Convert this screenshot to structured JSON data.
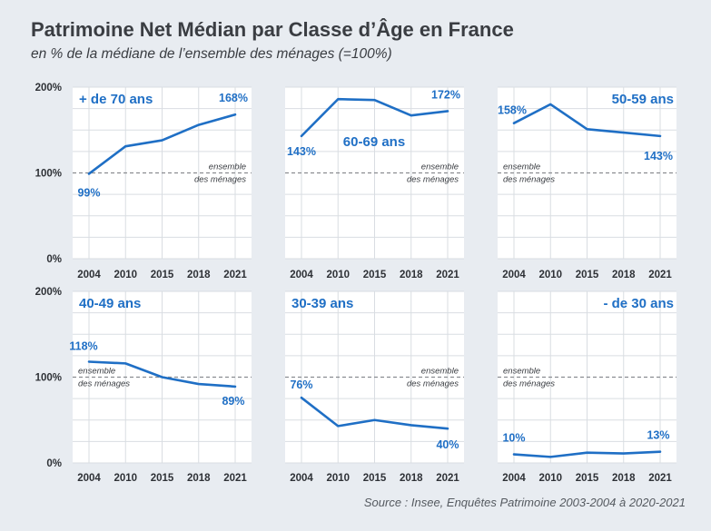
{
  "header": {
    "title": "Patrimoine Net Médian par Classe d’Âge en France",
    "subtitle": "en % de la médiane de l’ensemble des ménages (=100%)"
  },
  "footer": {
    "source": "Source : Insee, Enquêtes Patrimoine 2003-2004 à 2020-2021"
  },
  "reference": {
    "label_line1": "ensemble",
    "label_line2": "des ménages",
    "value": 100
  },
  "y_ticks": [
    "0%",
    "100%",
    "200%"
  ],
  "colors": {
    "line": "#1f6fc5",
    "label": "#1f6fc5",
    "background": "#e8ecf1",
    "grid": "#d9dde2",
    "reference": "#8a8d91"
  },
  "chart_data": [
    {
      "type": "line",
      "title": "+ de 70 ans",
      "categories": [
        "2004",
        "2010",
        "2015",
        "2018",
        "2021"
      ],
      "values": [
        99,
        131,
        138,
        156,
        168
      ],
      "labels": {
        "start": "99%",
        "end": "168%"
      },
      "ylim": [
        0,
        200
      ]
    },
    {
      "type": "line",
      "title": "60-69 ans",
      "categories": [
        "2004",
        "2010",
        "2015",
        "2018",
        "2021"
      ],
      "values": [
        143,
        186,
        185,
        167,
        172
      ],
      "labels": {
        "start": "143%",
        "end": "172%"
      },
      "ylim": [
        0,
        200
      ]
    },
    {
      "type": "line",
      "title": "50-59 ans",
      "categories": [
        "2004",
        "2010",
        "2015",
        "2018",
        "2021"
      ],
      "values": [
        158,
        180,
        151,
        147,
        143
      ],
      "labels": {
        "start": "158%",
        "end": "143%"
      },
      "ylim": [
        0,
        200
      ]
    },
    {
      "type": "line",
      "title": "40-49 ans",
      "categories": [
        "2004",
        "2010",
        "2015",
        "2018",
        "2021"
      ],
      "values": [
        118,
        116,
        100,
        92,
        89
      ],
      "labels": {
        "start": "118%",
        "end": "89%"
      },
      "ylim": [
        0,
        200
      ]
    },
    {
      "type": "line",
      "title": "30-39 ans",
      "categories": [
        "2004",
        "2010",
        "2015",
        "2018",
        "2021"
      ],
      "values": [
        76,
        43,
        50,
        44,
        40
      ],
      "labels": {
        "start": "76%",
        "end": "40%"
      },
      "ylim": [
        0,
        200
      ]
    },
    {
      "type": "line",
      "title": "- de 30 ans",
      "categories": [
        "2004",
        "2010",
        "2015",
        "2018",
        "2021"
      ],
      "values": [
        10,
        7,
        12,
        11,
        13
      ],
      "labels": {
        "start": "10%",
        "end": "13%"
      },
      "ylim": [
        0,
        200
      ]
    }
  ]
}
